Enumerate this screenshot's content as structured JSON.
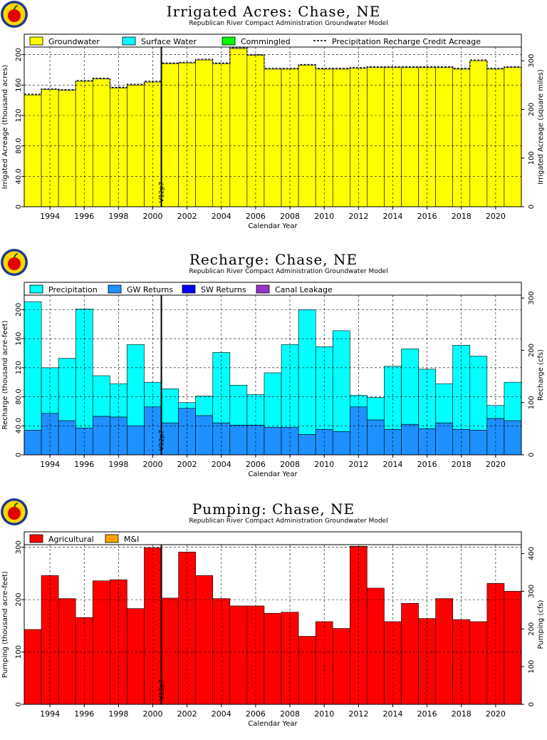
{
  "subtitle": "Republican River Compact Administration Groundwater Model",
  "xlabel": "Calendar Year",
  "year_ticks": [
    "1994",
    "1996",
    "1998",
    "2000",
    "2002",
    "2004",
    "2006",
    "2008",
    "2010",
    "2012",
    "2014",
    "2016",
    "2018",
    "2020"
  ],
  "marker_label": "V12p7",
  "marker_year": 2000.5,
  "years": [
    1993,
    1994,
    1995,
    1996,
    1997,
    1998,
    1999,
    2000,
    2001,
    2002,
    2003,
    2004,
    2005,
    2006,
    2007,
    2008,
    2009,
    2010,
    2011,
    2012,
    2013,
    2014,
    2015,
    2016,
    2017,
    2018,
    2019,
    2020,
    2021
  ],
  "colors": {
    "groundwater": "#ffff00",
    "surface_water": "#00ffff",
    "commingled": "#00ff00",
    "precip_recharge": "#00ffff",
    "gw_returns": "#1e90ff",
    "sw_returns": "#0000ff",
    "canal_leakage": "#9932cc",
    "agricultural": "#ff0000",
    "mi": "#ffa500"
  },
  "chart_data": [
    {
      "type": "bar",
      "title": "Irrigated Acres: Chase, NE",
      "xlabel": "Calendar Year",
      "ylabel": "Irrigated Acreage (thousand acres)",
      "ylabel_right": "Irrigated Acreage (square miles)",
      "ylim": [
        0,
        210
      ],
      "yticks": [
        "0",
        "40.0",
        "80.0",
        "120",
        "160",
        "200"
      ],
      "yticks_right": [
        "0",
        "100",
        "200",
        "300"
      ],
      "grid": true,
      "legend": [
        "Groundwater",
        "Surface Water",
        "Commingled",
        "Precipitation Recharge Credit Acreage"
      ],
      "series": [
        {
          "name": "Groundwater",
          "values": [
            147,
            154,
            153,
            165,
            168,
            156,
            160,
            164,
            188,
            189,
            193,
            188,
            208,
            199,
            181,
            181,
            186,
            181,
            181,
            182,
            183,
            183,
            183,
            183,
            183,
            181,
            192,
            181,
            183
          ]
        },
        {
          "name": "Surface Water",
          "values": [
            0,
            0,
            0,
            0,
            0,
            0,
            0,
            0,
            0,
            0,
            0,
            0,
            0,
            0,
            0,
            0,
            0,
            0,
            0,
            0,
            0,
            0,
            0,
            0,
            0,
            0,
            0,
            0,
            0
          ]
        },
        {
          "name": "Commingled",
          "values": [
            0,
            0,
            0,
            0,
            0,
            0,
            0,
            0,
            0,
            0,
            0,
            0,
            0,
            0,
            0,
            0,
            0,
            0,
            0,
            0,
            0,
            0,
            0,
            0,
            0,
            0,
            0,
            0,
            0
          ]
        },
        {
          "name": "Precipitation Recharge Credit Acreage",
          "values": [
            148,
            155,
            154,
            166,
            169,
            157,
            161,
            165,
            189,
            190,
            194,
            189,
            209,
            200,
            182,
            182,
            187,
            182,
            182,
            183,
            184,
            184,
            184,
            184,
            184,
            182,
            193,
            182,
            184
          ]
        }
      ]
    },
    {
      "type": "bar",
      "title": "Recharge: Chase, NE",
      "xlabel": "Calendar Year",
      "ylabel": "Recharge (thousand acre-feet)",
      "ylabel_right": "Recharge (cfs)",
      "ylim": [
        0,
        220
      ],
      "yticks": [
        "0",
        "40.0",
        "80.0",
        "120",
        "160",
        "200"
      ],
      "yticks_right": [
        "0",
        "100",
        "200",
        "300"
      ],
      "grid": true,
      "legend": [
        "Precipitation",
        "GW Returns",
        "SW Returns",
        "Canal Leakage"
      ],
      "series": [
        {
          "name": "GW Returns",
          "values": [
            34,
            57,
            47,
            37,
            53,
            52,
            40,
            66,
            44,
            64,
            54,
            44,
            41,
            41,
            38,
            38,
            28,
            35,
            32,
            66,
            48,
            35,
            42,
            36,
            44,
            35,
            34,
            50,
            47
          ]
        },
        {
          "name": "Precipitation",
          "values": [
            177,
            63,
            86,
            164,
            56,
            46,
            112,
            34,
            47,
            8,
            27,
            97,
            55,
            42,
            75,
            114,
            172,
            114,
            139,
            16,
            31,
            87,
            104,
            82,
            54,
            116,
            102,
            18,
            53
          ]
        },
        {
          "name": "SW Returns",
          "values": [
            0,
            0,
            0,
            0,
            0,
            0,
            0,
            0,
            0,
            0,
            0,
            0,
            0,
            0,
            0,
            0,
            0,
            0,
            0,
            0,
            0,
            0,
            0,
            0,
            0,
            0,
            0,
            0,
            0
          ]
        },
        {
          "name": "Canal Leakage",
          "values": [
            0,
            0,
            0,
            0,
            0,
            0,
            0,
            0,
            0,
            0,
            0,
            0,
            0,
            0,
            0,
            0,
            0,
            0,
            0,
            0,
            0,
            0,
            0,
            0,
            0,
            0,
            0,
            0,
            0
          ]
        }
      ]
    },
    {
      "type": "bar",
      "title": "Pumping: Chase, NE",
      "xlabel": "Calendar Year",
      "ylabel": "Pumping (thousand acre-feet)",
      "ylabel_right": "Pumping (cfs)",
      "ylim": [
        0,
        305
      ],
      "yticks": [
        "0",
        "100",
        "200",
        "300"
      ],
      "yticks_right": [
        "0",
        "100",
        "200",
        "300",
        "400"
      ],
      "grid": true,
      "legend": [
        "Agricultural",
        "M&I"
      ],
      "series": [
        {
          "name": "Agricultural",
          "values": [
            143,
            246,
            202,
            166,
            236,
            238,
            183,
            299,
            203,
            291,
            246,
            202,
            188,
            188,
            174,
            176,
            130,
            158,
            145,
            302,
            222,
            158,
            193,
            164,
            202,
            162,
            158,
            231,
            216
          ]
        },
        {
          "name": "M&I",
          "values": [
            0,
            0,
            0,
            0,
            0,
            0,
            0,
            0,
            0,
            0,
            0,
            0,
            0,
            0,
            0,
            0,
            0,
            0,
            0,
            0,
            0,
            0,
            0,
            0,
            0,
            0,
            0,
            0,
            0
          ]
        }
      ]
    }
  ]
}
